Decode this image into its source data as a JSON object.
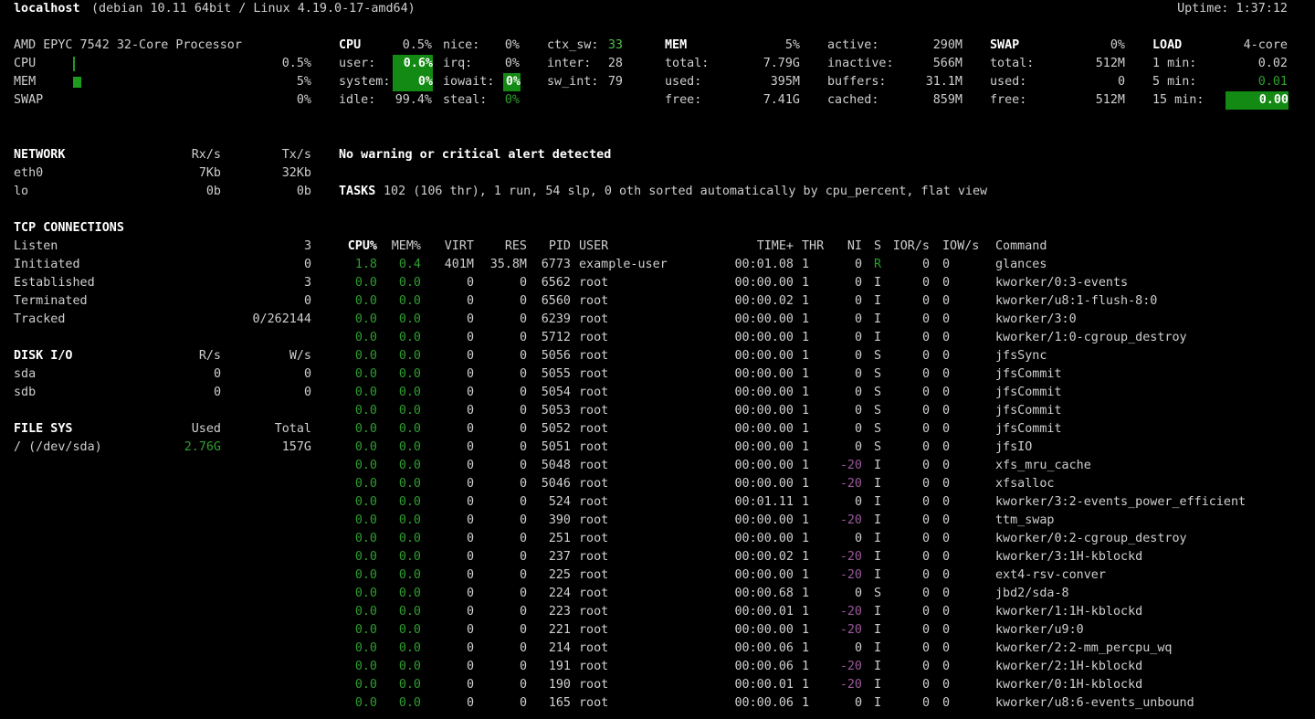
{
  "header": {
    "hostname": "localhost",
    "system": "(debian 10.11 64bit / Linux 4.19.0-17-amd64)",
    "uptime": "Uptime: 1:37:12"
  },
  "quicklook": {
    "cpu_name": "AMD EPYC 7542 32-Core Processor",
    "cpu_label": "CPU",
    "cpu_value": "0.5%",
    "cpu_percent": 0.5,
    "mem_label": "MEM",
    "mem_value": "5%",
    "mem_percent": 5,
    "swap_label": "SWAP",
    "swap_value": "0%"
  },
  "cpu": {
    "title": "CPU",
    "total": "0.5%",
    "user_label": "user:",
    "user": "0.6%",
    "system_label": "system:",
    "system": "0%",
    "idle_label": "idle:",
    "idle": "99.4%",
    "nice_label": "nice:",
    "nice": "0%",
    "irq_label": "irq:",
    "irq": "0%",
    "iowait_label": "iowait:",
    "iowait": "0%",
    "steal_label": "steal:",
    "steal": "0%",
    "ctx_sw_label": "ctx_sw:",
    "ctx_sw": "33",
    "inter_label": "inter:",
    "inter": "28",
    "sw_int_label": "sw_int:",
    "sw_int": "79"
  },
  "mem": {
    "title": "MEM",
    "percent": "5%",
    "total_label": "total:",
    "total": "7.79G",
    "used_label": "used:",
    "used": "395M",
    "free_label": "free:",
    "free": "7.41G",
    "active_label": "active:",
    "active": "290M",
    "inactive_label": "inactive:",
    "inactive": "566M",
    "buffers_label": "buffers:",
    "buffers": "31.1M",
    "cached_label": "cached:",
    "cached": "859M"
  },
  "swap": {
    "title": "SWAP",
    "percent": "0%",
    "total_label": "total:",
    "total": "512M",
    "used_label": "used:",
    "used": "0",
    "free_label": "free:",
    "free": "512M"
  },
  "load": {
    "title": "LOAD",
    "cores": "4-core",
    "min1_label": "1 min:",
    "min1": "0.02",
    "min5_label": "5 min:",
    "min5": "0.01",
    "min15_label": "15 min:",
    "min15": "0.00"
  },
  "network": {
    "title": "NETWORK",
    "rx_header": "Rx/s",
    "tx_header": "Tx/s",
    "interfaces": [
      {
        "name": "eth0",
        "rx": "7Kb",
        "tx": "32Kb"
      },
      {
        "name": "lo",
        "rx": "0b",
        "tx": "0b"
      }
    ]
  },
  "tcp": {
    "title": "TCP CONNECTIONS",
    "rows": [
      {
        "label": "Listen",
        "value": "3"
      },
      {
        "label": "Initiated",
        "value": "0"
      },
      {
        "label": "Established",
        "value": "3"
      },
      {
        "label": "Terminated",
        "value": "0"
      },
      {
        "label": "Tracked",
        "value": "0/262144"
      }
    ]
  },
  "diskio": {
    "title": "DISK I/O",
    "r_header": "R/s",
    "w_header": "W/s",
    "disks": [
      {
        "name": "sda",
        "r": "0",
        "w": "0"
      },
      {
        "name": "sdb",
        "r": "0",
        "w": "0"
      }
    ]
  },
  "fs": {
    "title": "FILE SYS",
    "used_header": "Used",
    "total_header": "Total",
    "mounts": [
      {
        "name": "/ (/dev/sda)",
        "used": "2.76G",
        "total": "157G"
      }
    ]
  },
  "alert": "No warning or critical alert detected",
  "tasks": {
    "title": "TASKS",
    "summary": "102 (106 thr), 1 run, 54 slp, 0 oth sorted automatically by cpu_percent, flat view"
  },
  "processes": {
    "headers": {
      "cpu": "CPU%",
      "mem": "MEM%",
      "virt": "VIRT",
      "res": "RES",
      "pid": "PID",
      "user": "USER",
      "time": "TIME+",
      "thr": "THR",
      "ni": "NI",
      "s": "S",
      "ior": "IOR/s",
      "iow": "IOW/s",
      "cmd": "Command"
    },
    "rows": [
      {
        "cpu": "1.8",
        "mem": "0.4",
        "virt": "401M",
        "res": "35.8M",
        "pid": "6773",
        "user": "example-user",
        "time": "00:01.08",
        "thr": "1",
        "ni": "0",
        "s": "R",
        "ior": "0",
        "iow": "0",
        "cmd": "glances"
      },
      {
        "cpu": "0.0",
        "mem": "0.0",
        "virt": "0",
        "res": "0",
        "pid": "6562",
        "user": "root",
        "time": "00:00.00",
        "thr": "1",
        "ni": "0",
        "s": "I",
        "ior": "0",
        "iow": "0",
        "cmd": "kworker/0:3-events"
      },
      {
        "cpu": "0.0",
        "mem": "0.0",
        "virt": "0",
        "res": "0",
        "pid": "6560",
        "user": "root",
        "time": "00:00.02",
        "thr": "1",
        "ni": "0",
        "s": "I",
        "ior": "0",
        "iow": "0",
        "cmd": "kworker/u8:1-flush-8:0"
      },
      {
        "cpu": "0.0",
        "mem": "0.0",
        "virt": "0",
        "res": "0",
        "pid": "6239",
        "user": "root",
        "time": "00:00.00",
        "thr": "1",
        "ni": "0",
        "s": "I",
        "ior": "0",
        "iow": "0",
        "cmd": "kworker/3:0"
      },
      {
        "cpu": "0.0",
        "mem": "0.0",
        "virt": "0",
        "res": "0",
        "pid": "5712",
        "user": "root",
        "time": "00:00.00",
        "thr": "1",
        "ni": "0",
        "s": "I",
        "ior": "0",
        "iow": "0",
        "cmd": "kworker/1:0-cgroup_destroy"
      },
      {
        "cpu": "0.0",
        "mem": "0.0",
        "virt": "0",
        "res": "0",
        "pid": "5056",
        "user": "root",
        "time": "00:00.00",
        "thr": "1",
        "ni": "0",
        "s": "S",
        "ior": "0",
        "iow": "0",
        "cmd": "jfsSync"
      },
      {
        "cpu": "0.0",
        "mem": "0.0",
        "virt": "0",
        "res": "0",
        "pid": "5055",
        "user": "root",
        "time": "00:00.00",
        "thr": "1",
        "ni": "0",
        "s": "S",
        "ior": "0",
        "iow": "0",
        "cmd": "jfsCommit"
      },
      {
        "cpu": "0.0",
        "mem": "0.0",
        "virt": "0",
        "res": "0",
        "pid": "5054",
        "user": "root",
        "time": "00:00.00",
        "thr": "1",
        "ni": "0",
        "s": "S",
        "ior": "0",
        "iow": "0",
        "cmd": "jfsCommit"
      },
      {
        "cpu": "0.0",
        "mem": "0.0",
        "virt": "0",
        "res": "0",
        "pid": "5053",
        "user": "root",
        "time": "00:00.00",
        "thr": "1",
        "ni": "0",
        "s": "S",
        "ior": "0",
        "iow": "0",
        "cmd": "jfsCommit"
      },
      {
        "cpu": "0.0",
        "mem": "0.0",
        "virt": "0",
        "res": "0",
        "pid": "5052",
        "user": "root",
        "time": "00:00.00",
        "thr": "1",
        "ni": "0",
        "s": "S",
        "ior": "0",
        "iow": "0",
        "cmd": "jfsCommit"
      },
      {
        "cpu": "0.0",
        "mem": "0.0",
        "virt": "0",
        "res": "0",
        "pid": "5051",
        "user": "root",
        "time": "00:00.00",
        "thr": "1",
        "ni": "0",
        "s": "S",
        "ior": "0",
        "iow": "0",
        "cmd": "jfsIO"
      },
      {
        "cpu": "0.0",
        "mem": "0.0",
        "virt": "0",
        "res": "0",
        "pid": "5048",
        "user": "root",
        "time": "00:00.00",
        "thr": "1",
        "ni": "-20",
        "s": "I",
        "ior": "0",
        "iow": "0",
        "cmd": "xfs_mru_cache"
      },
      {
        "cpu": "0.0",
        "mem": "0.0",
        "virt": "0",
        "res": "0",
        "pid": "5046",
        "user": "root",
        "time": "00:00.00",
        "thr": "1",
        "ni": "-20",
        "s": "I",
        "ior": "0",
        "iow": "0",
        "cmd": "xfsalloc"
      },
      {
        "cpu": "0.0",
        "mem": "0.0",
        "virt": "0",
        "res": "0",
        "pid": "524",
        "user": "root",
        "time": "00:01.11",
        "thr": "1",
        "ni": "0",
        "s": "I",
        "ior": "0",
        "iow": "0",
        "cmd": "kworker/3:2-events_power_efficient"
      },
      {
        "cpu": "0.0",
        "mem": "0.0",
        "virt": "0",
        "res": "0",
        "pid": "390",
        "user": "root",
        "time": "00:00.00",
        "thr": "1",
        "ni": "-20",
        "s": "I",
        "ior": "0",
        "iow": "0",
        "cmd": "ttm_swap"
      },
      {
        "cpu": "0.0",
        "mem": "0.0",
        "virt": "0",
        "res": "0",
        "pid": "251",
        "user": "root",
        "time": "00:00.00",
        "thr": "1",
        "ni": "0",
        "s": "I",
        "ior": "0",
        "iow": "0",
        "cmd": "kworker/0:2-cgroup_destroy"
      },
      {
        "cpu": "0.0",
        "mem": "0.0",
        "virt": "0",
        "res": "0",
        "pid": "237",
        "user": "root",
        "time": "00:00.02",
        "thr": "1",
        "ni": "-20",
        "s": "I",
        "ior": "0",
        "iow": "0",
        "cmd": "kworker/3:1H-kblockd"
      },
      {
        "cpu": "0.0",
        "mem": "0.0",
        "virt": "0",
        "res": "0",
        "pid": "225",
        "user": "root",
        "time": "00:00.00",
        "thr": "1",
        "ni": "-20",
        "s": "I",
        "ior": "0",
        "iow": "0",
        "cmd": "ext4-rsv-conver"
      },
      {
        "cpu": "0.0",
        "mem": "0.0",
        "virt": "0",
        "res": "0",
        "pid": "224",
        "user": "root",
        "time": "00:00.68",
        "thr": "1",
        "ni": "0",
        "s": "S",
        "ior": "0",
        "iow": "0",
        "cmd": "jbd2/sda-8"
      },
      {
        "cpu": "0.0",
        "mem": "0.0",
        "virt": "0",
        "res": "0",
        "pid": "223",
        "user": "root",
        "time": "00:00.01",
        "thr": "1",
        "ni": "-20",
        "s": "I",
        "ior": "0",
        "iow": "0",
        "cmd": "kworker/1:1H-kblockd"
      },
      {
        "cpu": "0.0",
        "mem": "0.0",
        "virt": "0",
        "res": "0",
        "pid": "221",
        "user": "root",
        "time": "00:00.00",
        "thr": "1",
        "ni": "-20",
        "s": "I",
        "ior": "0",
        "iow": "0",
        "cmd": "kworker/u9:0"
      },
      {
        "cpu": "0.0",
        "mem": "0.0",
        "virt": "0",
        "res": "0",
        "pid": "214",
        "user": "root",
        "time": "00:00.06",
        "thr": "1",
        "ni": "0",
        "s": "I",
        "ior": "0",
        "iow": "0",
        "cmd": "kworker/2:2-mm_percpu_wq"
      },
      {
        "cpu": "0.0",
        "mem": "0.0",
        "virt": "0",
        "res": "0",
        "pid": "191",
        "user": "root",
        "time": "00:00.06",
        "thr": "1",
        "ni": "-20",
        "s": "I",
        "ior": "0",
        "iow": "0",
        "cmd": "kworker/2:1H-kblockd"
      },
      {
        "cpu": "0.0",
        "mem": "0.0",
        "virt": "0",
        "res": "0",
        "pid": "190",
        "user": "root",
        "time": "00:00.01",
        "thr": "1",
        "ni": "-20",
        "s": "I",
        "ior": "0",
        "iow": "0",
        "cmd": "kworker/0:1H-kblockd"
      },
      {
        "cpu": "0.0",
        "mem": "0.0",
        "virt": "0",
        "res": "0",
        "pid": "165",
        "user": "root",
        "time": "00:00.06",
        "thr": "1",
        "ni": "0",
        "s": "I",
        "ior": "0",
        "iow": "0",
        "cmd": "kworker/u8:6-events_unbound"
      }
    ]
  },
  "colors": {
    "green": "#2e9e2e",
    "highlight_bg": "#138a13",
    "nice_negative": "#9a5a9a"
  }
}
